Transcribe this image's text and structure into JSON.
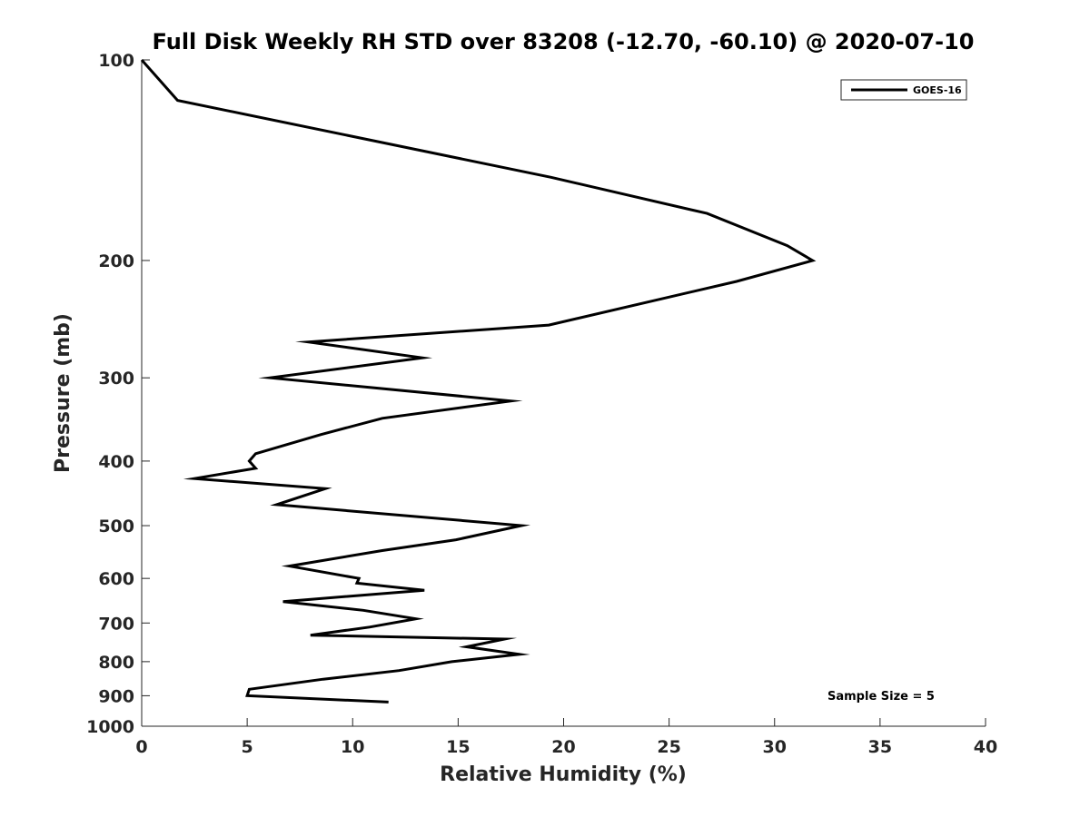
{
  "chart_data": {
    "type": "line",
    "title": "Full Disk Weekly RH STD over 83208 (-12.70, -60.10) @ 2020-07-10",
    "xlabel": "Relative Humidity (%)",
    "ylabel": "Pressure (mb)",
    "xlim": [
      0,
      40
    ],
    "ylim": [
      1000,
      100
    ],
    "yscale": "log",
    "y_reversed": true,
    "x_ticks": [
      0,
      5,
      10,
      15,
      20,
      25,
      30,
      35,
      40
    ],
    "y_ticks": [
      100,
      200,
      300,
      400,
      500,
      600,
      700,
      800,
      900,
      1000
    ],
    "grid": false,
    "legend_position": "top-right",
    "series": [
      {
        "name": "GOES-16",
        "color": "#000000",
        "x": [
          0.0,
          1.7,
          19.4,
          26.8,
          30.6,
          31.8,
          28.2,
          19.3,
          7.9,
          13.3,
          6.1,
          17.5,
          11.4,
          8.5,
          5.4,
          5.1,
          5.4,
          2.5,
          8.7,
          6.4,
          18.0,
          14.9,
          11.4,
          7.0,
          10.3,
          10.2,
          13.4,
          6.7,
          10.5,
          13.0,
          10.8,
          8.0,
          17.2,
          15.4,
          17.9,
          14.7,
          12.2,
          8.6,
          5.1,
          5.0,
          11.7
        ],
        "y": [
          100,
          115,
          150,
          170,
          190,
          200,
          215,
          250,
          265,
          280,
          300,
          325,
          345,
          365,
          390,
          400,
          410,
          425,
          440,
          465,
          500,
          525,
          545,
          575,
          600,
          610,
          625,
          650,
          670,
          690,
          710,
          730,
          740,
          760,
          780,
          800,
          825,
          850,
          880,
          900,
          920
        ]
      }
    ],
    "annotations": [
      "Sample Size = 5"
    ]
  }
}
